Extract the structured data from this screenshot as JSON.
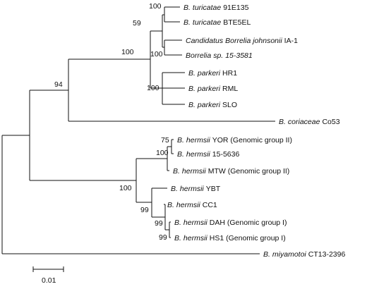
{
  "colors": {
    "line": "#111111",
    "text": "#111111",
    "highlight_red": "#cc1f1f",
    "highlight_blue": "#2a4aa8"
  },
  "taxa": [
    {
      "id": "t1",
      "genus": "B.",
      "species": "turicatae",
      "strain": "91E135",
      "color": "#111111"
    },
    {
      "id": "t2",
      "genus": "B.",
      "species": "turicatae",
      "strain": "BTE5EL",
      "color": "#111111"
    },
    {
      "id": "t3",
      "genus": "Candidatus",
      "species": "Borrelia johnsonii",
      "strain": "IA-1",
      "color": "#111111"
    },
    {
      "id": "t4",
      "genus": "Borrelia",
      "species": "sp.",
      "strain": "15-3581",
      "color": "#cc1f1f"
    },
    {
      "id": "t5",
      "genus": "B.",
      "species": "parkeri",
      "strain": "HR1",
      "color": "#111111"
    },
    {
      "id": "t6",
      "genus": "B.",
      "species": "parkeri",
      "strain": "RML",
      "color": "#111111"
    },
    {
      "id": "t7",
      "genus": "B.",
      "species": "parkeri",
      "strain": "SLO",
      "color": "#111111"
    },
    {
      "id": "t8",
      "genus": "B.",
      "species": "coriaceae",
      "strain": "Co53",
      "color": "#111111"
    },
    {
      "id": "t9",
      "genus": "B.",
      "species": "hermsii",
      "strain": "YOR (Genomic group II)",
      "color": "#111111"
    },
    {
      "id": "t10",
      "genus": "B.",
      "species": "hermsii",
      "strain": "15-5636",
      "color": "#2a4aa8"
    },
    {
      "id": "t11",
      "genus": "B.",
      "species": "hermsii",
      "strain": "MTW (Genomic group II)",
      "color": "#111111"
    },
    {
      "id": "t12",
      "genus": "B.",
      "species": "hermsii",
      "strain": "YBT",
      "color": "#111111"
    },
    {
      "id": "t13",
      "genus": "B.",
      "species": "hermsii",
      "strain": "CC1",
      "color": "#111111"
    },
    {
      "id": "t14",
      "genus": "B.",
      "species": "hermsii",
      "strain": "DAH (Genomic group I)",
      "color": "#111111"
    },
    {
      "id": "t15",
      "genus": "B.",
      "species": "hermsii",
      "strain": "HS1 (Genomic group I)",
      "color": "#111111"
    },
    {
      "id": "t16",
      "genus": "B.",
      "species": "miyamotoi",
      "strain": "CT13-2396",
      "color": "#111111"
    }
  ],
  "bootstrap": {
    "turicatae_pair": "100",
    "turicatae_group": "59",
    "johnsonii_pair": "100",
    "soft_tick_clade": "100",
    "parkeri_group": "100",
    "argasid_clade": "94",
    "yor_pair": "75",
    "hermsii_gg2": "100",
    "hermsii_all": "100",
    "cc1_group": "99",
    "dah_hs1_pair": "99",
    "cc1_dah_hs1": "99"
  },
  "scale_bar": {
    "label": "0.01"
  }
}
